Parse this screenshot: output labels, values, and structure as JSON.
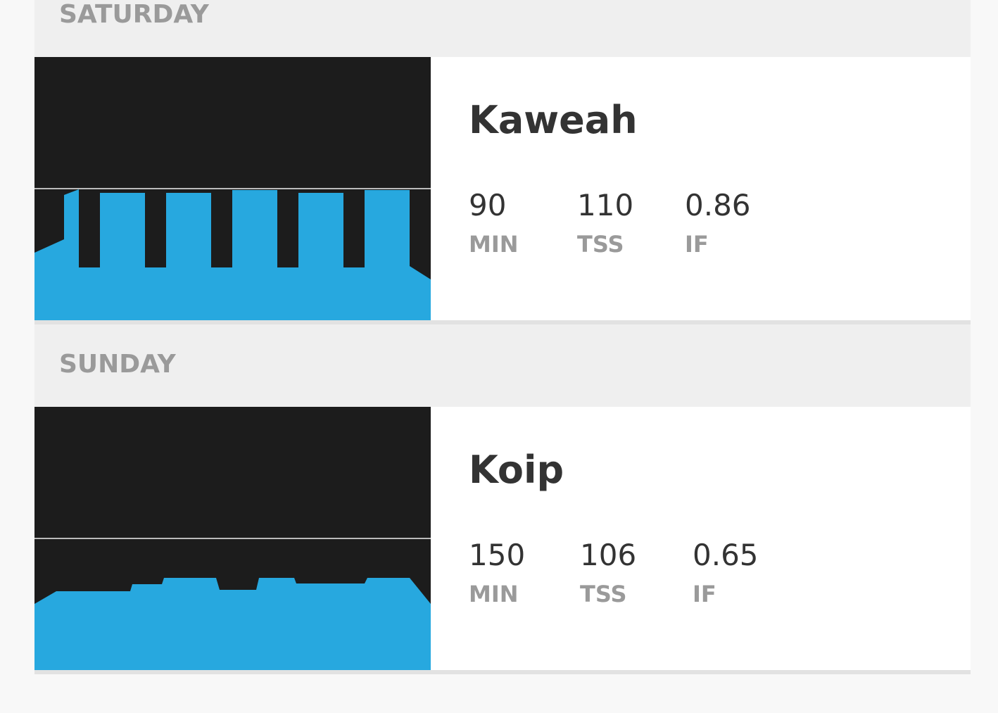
{
  "days": [
    {
      "day": "SATURDAY",
      "workout": "Kaweah",
      "stats": [
        {
          "value": "90",
          "unit": "MIN"
        },
        {
          "value": "110",
          "unit": "TSS"
        },
        {
          "value": "0.86",
          "unit": "IF"
        }
      ]
    },
    {
      "day": "SUNDAY",
      "workout": "Koip",
      "stats": [
        {
          "value": "150",
          "unit": "MIN"
        },
        {
          "value": "106",
          "unit": "TSS"
        },
        {
          "value": "0.65",
          "unit": "IF"
        }
      ]
    }
  ]
}
